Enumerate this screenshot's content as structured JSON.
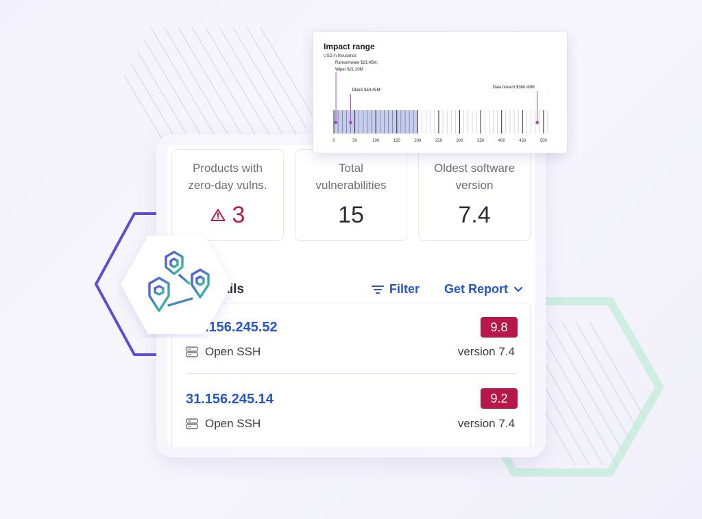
{
  "stats": [
    {
      "label_line1": "Products with",
      "label_line2": "zero-day vulns.",
      "value": "3"
    },
    {
      "label_line1": "Total",
      "label_line2": "vulnerabilities",
      "value": "15"
    },
    {
      "label_line1": "Oldest software",
      "label_line2": "version",
      "value": "7.4"
    }
  ],
  "section": {
    "title": "tails",
    "filter_label": "Filter",
    "report_label": "Get Report"
  },
  "rows": [
    {
      "ip": ".156.245.52",
      "score": "9.8",
      "service": "Open SSH",
      "version": "version 7.4"
    },
    {
      "ip": "31.156.245.14",
      "score": "9.2",
      "service": "Open SSH",
      "version": "version 7.4"
    }
  ],
  "colors": {
    "accent_blue": "#2557c4",
    "alert_red": "#b71c48",
    "score_bg": "#b8174a",
    "hex_purple": "#5b4fd9",
    "hex_mint": "#c9eee0",
    "range_fill": "#c6cdea",
    "marker": "#b04ad0"
  },
  "icons": {
    "warning": "warning-triangle-icon",
    "filter": "filter-lines-icon",
    "chevron": "chevron-down-icon",
    "server": "server-icon",
    "map_pins": "map-pins-icon"
  },
  "chart_data": {
    "type": "range",
    "title": "Impact range",
    "subtitle": "USD in thousands",
    "x_ticks": [
      0,
      50,
      100,
      150,
      200,
      250,
      300,
      350,
      400,
      450,
      500
    ],
    "xlim": [
      0,
      510
    ],
    "shaded_range": [
      0,
      200
    ],
    "annotations": [
      {
        "label": "Ransomware $21.45M,",
        "label2": "Wiper $21.20M",
        "value": 5
      },
      {
        "label": "DDoS $50.45M",
        "value": 40
      },
      {
        "label": "Data breach $380.43M",
        "value": 485
      }
    ]
  }
}
